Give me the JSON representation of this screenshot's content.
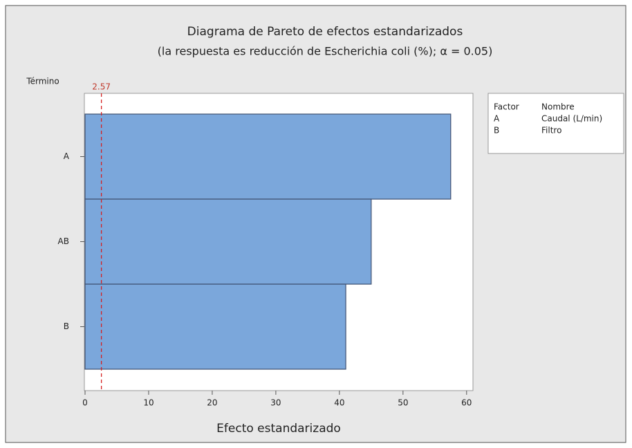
{
  "chart_data": {
    "type": "bar",
    "orientation": "horizontal",
    "title": "Diagrama de Pareto de efectos estandarizados",
    "subtitle": "(la respuesta es reducción de Escherichia coli (%); α = 0.05)",
    "y_label": "Término",
    "x_label": "Efecto estandarizado",
    "categories": [
      "A",
      "AB",
      "B"
    ],
    "values": [
      57.5,
      45,
      41
    ],
    "color": "#7ba7db",
    "reference_line": 2.57,
    "xlim": [
      0,
      61
    ],
    "xticks": [
      0,
      10,
      20,
      30,
      40,
      50,
      60
    ],
    "factor_table": {
      "headers": [
        "Factor",
        "Nombre"
      ],
      "rows": [
        [
          "A",
          "Caudal (L/min)"
        ],
        [
          "B",
          "Filtro"
        ]
      ]
    }
  }
}
